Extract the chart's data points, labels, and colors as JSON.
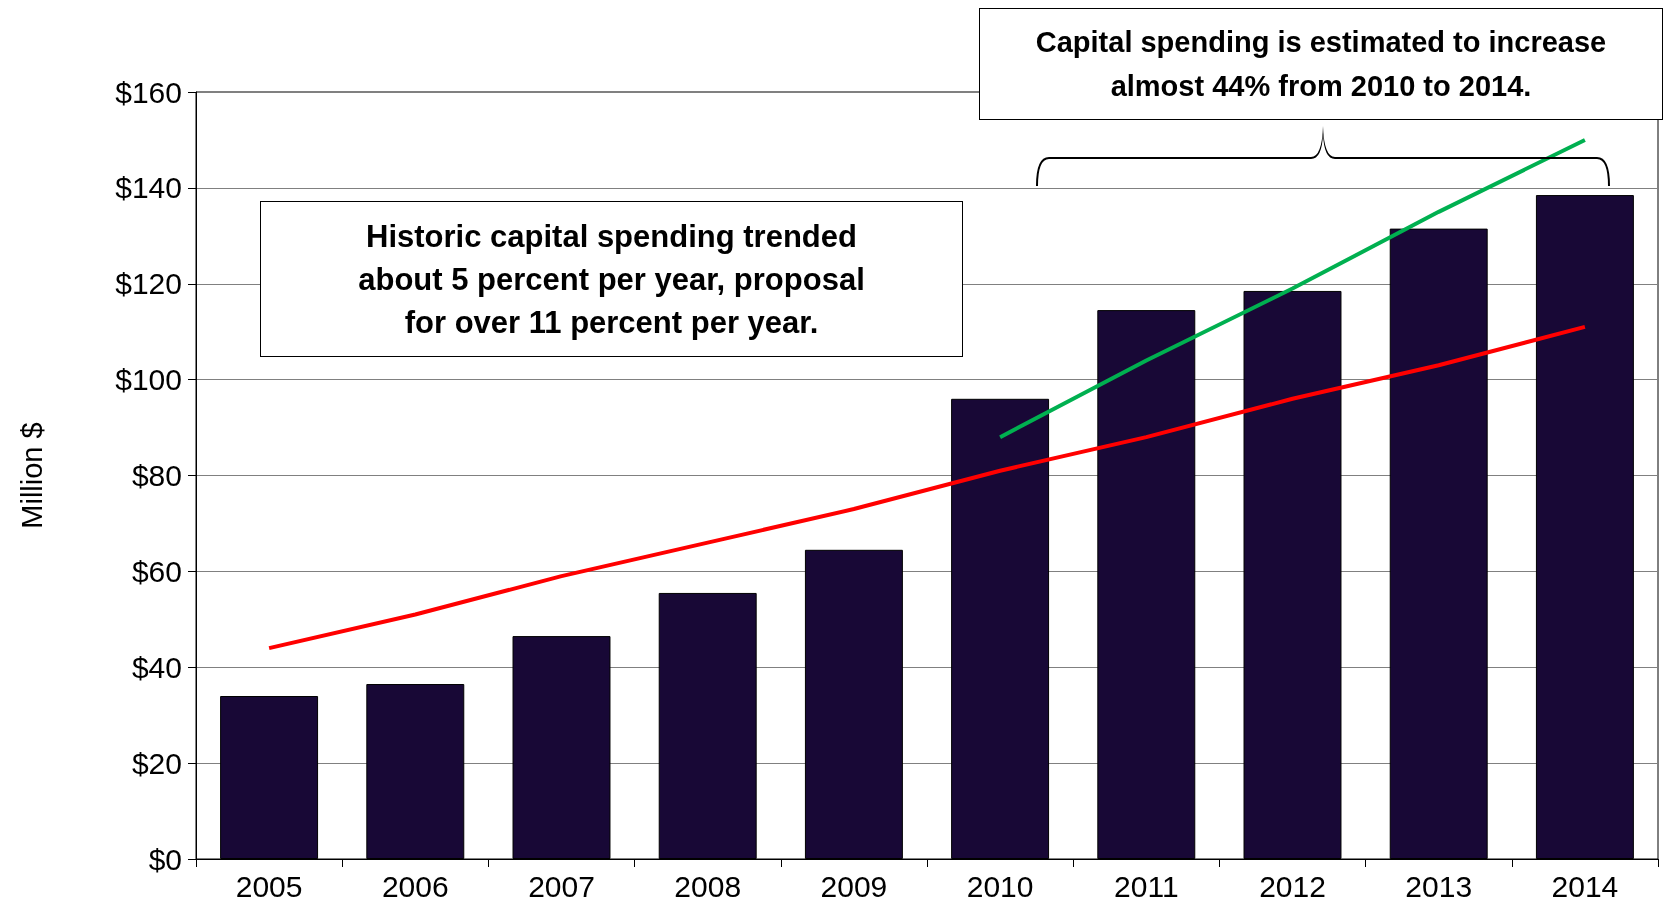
{
  "chart_data": {
    "type": "bar",
    "ylabel": "Million $",
    "categories": [
      "2005",
      "2006",
      "2007",
      "2008",
      "2009",
      "2010",
      "2011",
      "2012",
      "2013",
      "2014"
    ],
    "series": [
      {
        "color": "#180836",
        "values": [
          34,
          36.5,
          46.5,
          55.5,
          64.5,
          96,
          114.5,
          118.5,
          131.5,
          138.5
        ]
      },
      {
        "type": "line",
        "color": "#ff0000",
        "values": [
          44,
          51,
          59,
          66,
          73,
          81,
          88,
          96,
          103,
          111
        ]
      },
      {
        "type": "line",
        "color": "#00b050",
        "values": [
          null,
          null,
          null,
          null,
          null,
          88,
          104,
          119,
          135,
          150
        ]
      }
    ],
    "ylim": [
      0,
      160
    ],
    "yticks": [
      {
        "value": 0,
        "label": "$0"
      },
      {
        "value": 20,
        "label": "$20"
      },
      {
        "value": 40,
        "label": "$40"
      },
      {
        "value": 60,
        "label": "$60"
      },
      {
        "value": 80,
        "label": "$80"
      },
      {
        "value": 100,
        "label": "$100"
      },
      {
        "value": 120,
        "label": "$120"
      },
      {
        "value": 140,
        "label": "$140"
      },
      {
        "value": 160,
        "label": "$160"
      }
    ],
    "grid": "y",
    "annotations": [
      "Historic capital spending trended about 5 percent per year, proposal for over 11 percent per year.",
      "Capital spending is estimated to increase almost 44% from 2010 to 2014."
    ]
  }
}
